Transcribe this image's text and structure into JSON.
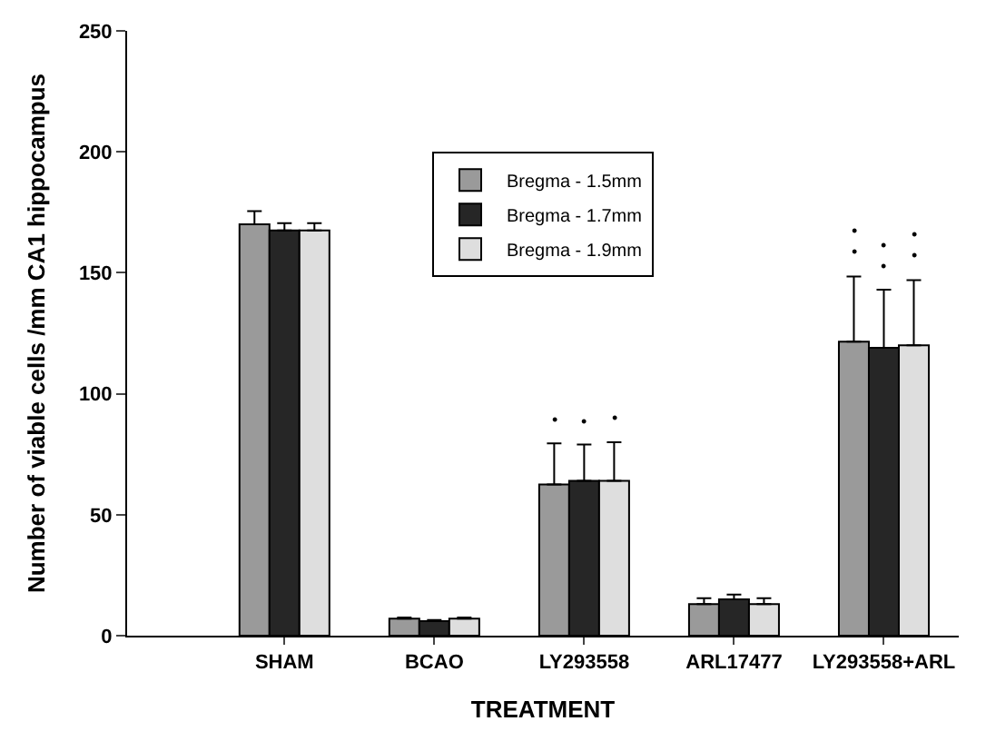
{
  "chart_data": {
    "type": "bar",
    "xlabel": "TREATMENT",
    "ylabel": "Number of viable cells /mm CA1 hippocampus",
    "categories": [
      "SHAM",
      "BCAO",
      "LY293558",
      "ARL17477",
      "LY293558+ARL"
    ],
    "series": [
      {
        "name": "Bregma - 1.5mm",
        "color": "#9a9a9a",
        "values": [
          170,
          7,
          62.5,
          13,
          121.5
        ],
        "errors": [
          [
            170,
            175.5
          ],
          [
            7,
            7.5
          ],
          [
            62.5,
            79.5
          ],
          [
            13,
            15.5
          ],
          [
            121.5,
            148.5
          ]
        ]
      },
      {
        "name": "Bregma - 1.7mm",
        "color": "#262626",
        "values": [
          167.5,
          6,
          64,
          15,
          119
        ],
        "errors": [
          [
            167.5,
            170.5
          ],
          [
            6,
            6.5
          ],
          [
            64,
            79
          ],
          [
            15,
            17
          ],
          [
            119,
            143
          ]
        ]
      },
      {
        "name": "Bregma - 1.9mm",
        "color": "#dedede",
        "values": [
          167.5,
          7,
          64,
          13,
          120
        ],
        "errors": [
          [
            167.5,
            170.5
          ],
          [
            7,
            7.5
          ],
          [
            64,
            80
          ],
          [
            13,
            15.5
          ],
          [
            120,
            147
          ]
        ]
      }
    ],
    "annotations": [
      "•",
      "•",
      "•",
      "•\n•",
      "•\n•",
      "•\n•"
    ],
    "ylim": [
      0,
      250
    ],
    "yticks": [
      0,
      50,
      100,
      150,
      200,
      250
    ],
    "legend": "top"
  }
}
